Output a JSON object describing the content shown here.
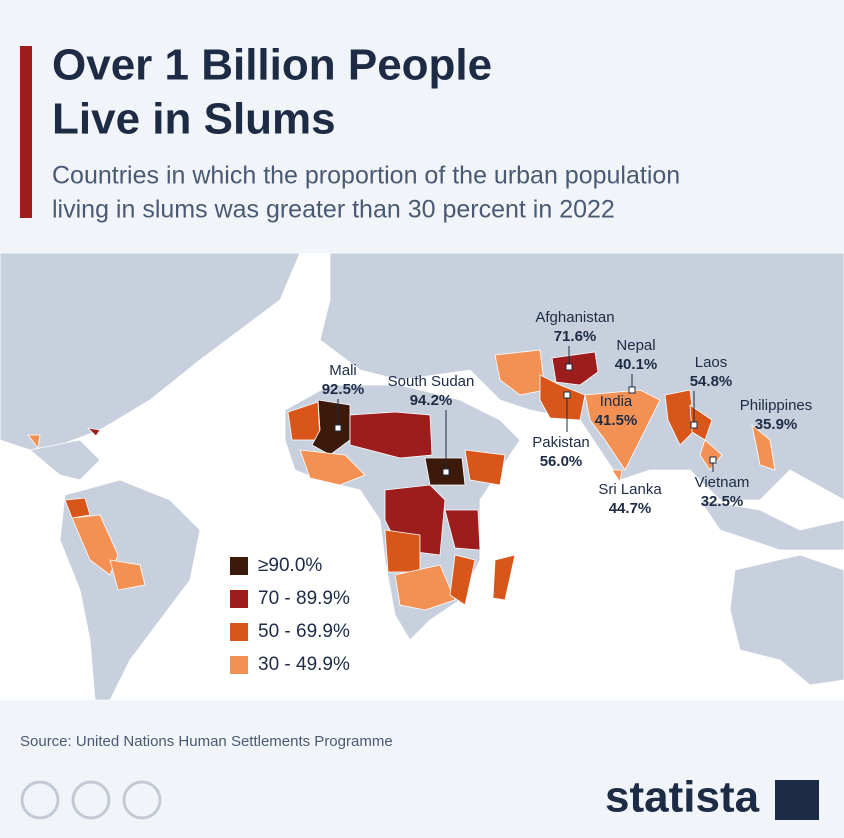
{
  "header": {
    "title": [
      "Over 1 Billion People",
      "Live in Slums"
    ],
    "subtitle": [
      "Countries in which the proportion of the urban population",
      "living in slums was greater than 30 percent in 2022"
    ]
  },
  "map": {
    "labels": [
      {
        "name": "Mali",
        "value": "92.5%"
      },
      {
        "name": "South Sudan",
        "value": "94.2%"
      },
      {
        "name": "Afghanistan",
        "value": "71.6%"
      },
      {
        "name": "Nepal",
        "value": "40.1%"
      },
      {
        "name": "Laos",
        "value": "54.8%"
      },
      {
        "name": "Philippines",
        "value": "35.9%"
      },
      {
        "name": "India",
        "value": "41.5%"
      },
      {
        "name": "Pakistan",
        "value": "56.0%"
      },
      {
        "name": "Sri Lanka",
        "value": "44.7%"
      },
      {
        "name": "Vietnam",
        "value": "32.5%"
      }
    ],
    "legend": [
      {
        "label": "≥90.0%",
        "color": "#3b1a0b"
      },
      {
        "label": "70 - 89.9%",
        "color": "#9c1d1b"
      },
      {
        "label": "50 - 69.9%",
        "color": "#d9561b"
      },
      {
        "label": "30 - 49.9%",
        "color": "#f39155"
      }
    ]
  },
  "footer": {
    "source": "Source: United Nations Human Settlements Programme",
    "brand": "statista"
  }
}
